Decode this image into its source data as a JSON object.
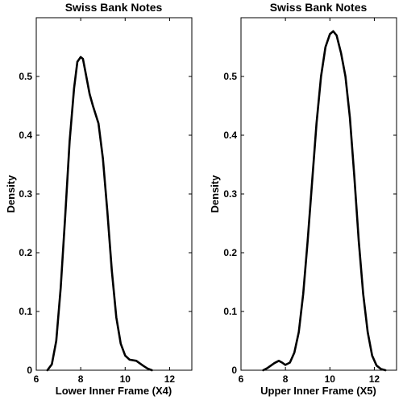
{
  "chart_data": [
    {
      "type": "line",
      "title": "Swiss Bank Notes",
      "xlabel": "Lower Inner Frame (X4)",
      "ylabel": "Density",
      "xlim": [
        6,
        13
      ],
      "ylim": [
        0,
        0.6
      ],
      "xticks": [
        6,
        8,
        10,
        12
      ],
      "yticks": [
        0,
        0.1,
        0.2,
        0.3,
        0.4,
        0.5
      ],
      "grid": false,
      "series": [
        {
          "x": [
            6.5,
            6.7,
            6.9,
            7.1,
            7.3,
            7.5,
            7.7,
            7.85,
            8.0,
            8.1,
            8.2,
            8.4,
            8.55,
            8.8,
            9.0,
            9.2,
            9.4,
            9.6,
            9.8,
            10.0,
            10.2,
            10.5,
            10.8,
            11.0,
            11.2
          ],
          "y": [
            0.0,
            0.01,
            0.05,
            0.14,
            0.26,
            0.39,
            0.48,
            0.525,
            0.533,
            0.53,
            0.51,
            0.47,
            0.45,
            0.42,
            0.36,
            0.27,
            0.17,
            0.09,
            0.045,
            0.025,
            0.018,
            0.016,
            0.008,
            0.003,
            0.0
          ]
        }
      ]
    },
    {
      "type": "line",
      "title": "Swiss Bank Notes",
      "xlabel": "Upper Inner Frame (X5)",
      "ylabel": "Density",
      "xlim": [
        6,
        13
      ],
      "ylim": [
        0,
        0.6
      ],
      "xticks": [
        6,
        8,
        10,
        12
      ],
      "yticks": [
        0,
        0.1,
        0.2,
        0.3,
        0.4,
        0.5
      ],
      "grid": false,
      "series": [
        {
          "x": [
            7.0,
            7.2,
            7.5,
            7.7,
            7.85,
            8.0,
            8.2,
            8.4,
            8.6,
            8.8,
            9.0,
            9.2,
            9.4,
            9.6,
            9.8,
            10.0,
            10.15,
            10.3,
            10.5,
            10.7,
            10.9,
            11.1,
            11.3,
            11.5,
            11.7,
            11.9,
            12.1,
            12.3,
            12.5
          ],
          "y": [
            0.0,
            0.004,
            0.012,
            0.016,
            0.013,
            0.009,
            0.013,
            0.03,
            0.065,
            0.13,
            0.22,
            0.32,
            0.42,
            0.5,
            0.55,
            0.572,
            0.577,
            0.57,
            0.54,
            0.5,
            0.43,
            0.33,
            0.22,
            0.13,
            0.065,
            0.025,
            0.008,
            0.002,
            0.0
          ]
        }
      ]
    }
  ]
}
